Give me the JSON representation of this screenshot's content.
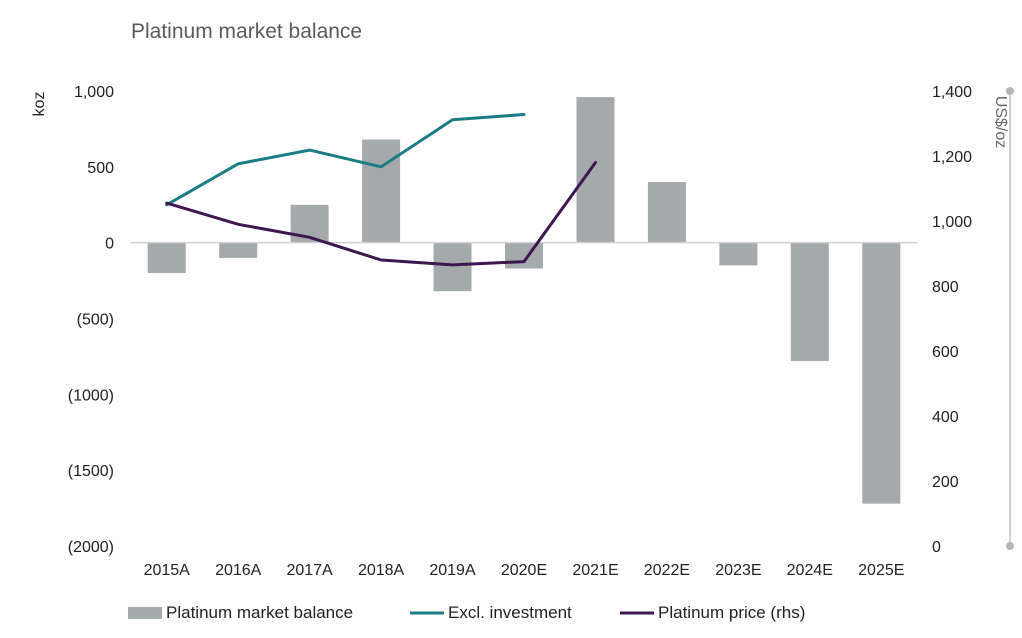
{
  "chart_data": {
    "type": "bar",
    "title": "Platinum market balance",
    "categories": [
      "2015A",
      "2016A",
      "2017A",
      "2018A",
      "2019A",
      "2020E",
      "2021E",
      "2022E",
      "2023E",
      "2024E",
      "2025E"
    ],
    "ylabel": "koz",
    "ylabel_right": "US$/oz",
    "ylim": [
      -2000,
      1000
    ],
    "ylim_right": [
      0,
      1400
    ],
    "y_ticks": [
      1000,
      500,
      0,
      -500,
      -1000,
      -1500,
      -2000
    ],
    "y_tick_labels": [
      "1,000",
      "500",
      "0",
      "(500)",
      "(1000)",
      "(1500)",
      "(2000)"
    ],
    "y_right_ticks": [
      1400,
      1200,
      1000,
      800,
      600,
      400,
      200,
      0
    ],
    "y_right_tick_labels": [
      "1,400",
      "1,200",
      "1,000",
      "800",
      "600",
      "400",
      "200",
      "0"
    ],
    "grid": false,
    "legend_position": "bottom",
    "series": [
      {
        "name": "Platinum market balance",
        "kind": "bar",
        "axis": "left",
        "color": "#a4a9ac",
        "values": [
          -200,
          -100,
          250,
          680,
          -320,
          -170,
          960,
          400,
          -150,
          -780,
          -1720
        ]
      },
      {
        "name": "Excl. investment",
        "kind": "line",
        "axis": "left",
        "color": "#1a7d86",
        "values": [
          250,
          520,
          610,
          500,
          810,
          845,
          null,
          null,
          null,
          null,
          null
        ]
      },
      {
        "name": "Platinum price (rhs)",
        "kind": "line",
        "axis": "right",
        "color": "#3f1750",
        "values": [
          1055,
          990,
          950,
          880,
          865,
          875,
          1180,
          null,
          null,
          null,
          null
        ]
      }
    ]
  }
}
